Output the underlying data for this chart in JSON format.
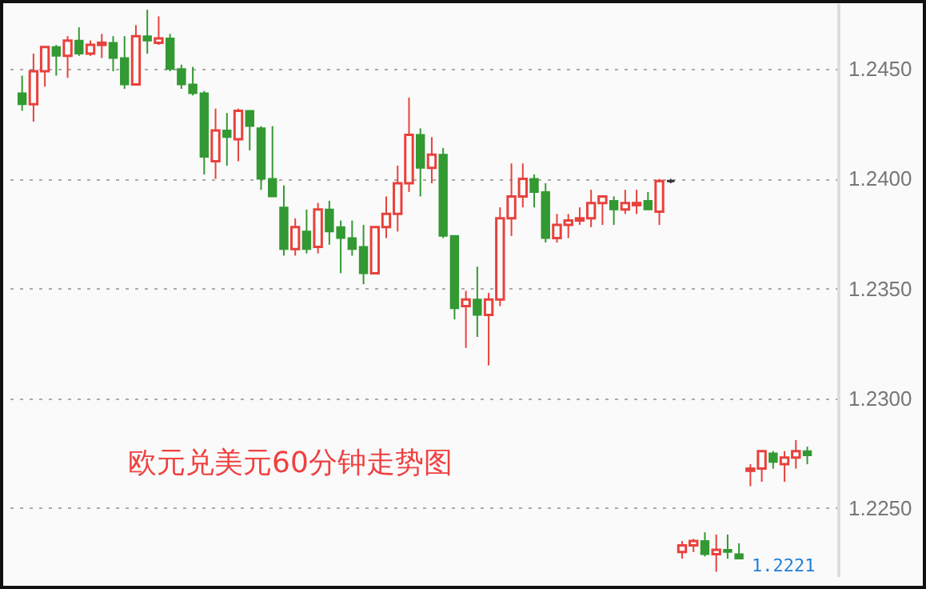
{
  "chart_data": {
    "type": "candlestick",
    "categories": [
      null,
      null,
      null,
      null,
      null,
      null,
      null,
      null,
      null,
      null,
      null,
      null,
      null,
      null,
      null,
      null,
      null,
      null,
      null,
      null,
      null,
      null,
      null,
      null,
      null,
      null,
      null,
      null,
      null,
      null,
      null,
      null,
      null,
      null,
      null,
      null,
      null,
      null,
      null,
      null,
      null,
      null,
      null,
      null,
      null,
      null,
      null,
      null,
      null,
      null,
      null,
      null,
      null,
      null,
      null,
      null,
      null,
      null,
      null,
      null,
      null,
      null,
      null,
      null,
      null,
      null,
      null,
      null,
      null,
      null
    ],
    "ohlc": [
      [
        1.2439,
        1.2447,
        1.2431,
        1.2434
      ],
      [
        1.2434,
        1.2457,
        1.2426,
        1.2449
      ],
      [
        1.2449,
        1.246,
        1.2442,
        1.246
      ],
      [
        1.246,
        1.2461,
        1.2447,
        1.2456
      ],
      [
        1.2456,
        1.2465,
        1.2446,
        1.2463
      ],
      [
        1.2463,
        1.2469,
        1.2456,
        1.2457
      ],
      [
        1.2457,
        1.2463,
        1.2456,
        1.2461
      ],
      [
        1.2461,
        1.2466,
        1.2455,
        1.2462
      ],
      [
        1.2462,
        1.2465,
        1.2449,
        1.2455
      ],
      [
        1.2455,
        1.2465,
        1.2441,
        1.2443
      ],
      [
        1.2443,
        1.247,
        1.2443,
        1.2465
      ],
      [
        1.2465,
        1.2477,
        1.2457,
        1.2463
      ],
      [
        1.2462,
        1.2474,
        1.2461,
        1.2464
      ],
      [
        1.2464,
        1.2466,
        1.2449,
        1.245
      ],
      [
        1.245,
        1.2452,
        1.2441,
        1.2443
      ],
      [
        1.2443,
        1.2451,
        1.2438,
        1.2439
      ],
      [
        1.2439,
        1.244,
        1.2402,
        1.241
      ],
      [
        1.2408,
        1.2432,
        1.24,
        1.2422
      ],
      [
        1.2422,
        1.243,
        1.2406,
        1.2419
      ],
      [
        1.2418,
        1.2432,
        1.2408,
        1.2431
      ],
      [
        1.2431,
        1.2431,
        1.2413,
        1.2424
      ],
      [
        1.2423,
        1.2424,
        1.2395,
        1.24
      ],
      [
        1.24,
        1.2424,
        1.2392,
        1.2392
      ],
      [
        1.2387,
        1.2397,
        1.2365,
        1.2368
      ],
      [
        1.2368,
        1.2382,
        1.2365,
        1.2378
      ],
      [
        1.2376,
        1.2386,
        1.2366,
        1.2368
      ],
      [
        1.2369,
        1.2389,
        1.2366,
        1.2386
      ],
      [
        1.2386,
        1.239,
        1.237,
        1.2376
      ],
      [
        1.2378,
        1.2381,
        1.2357,
        1.2373
      ],
      [
        1.2373,
        1.2381,
        1.2365,
        1.2368
      ],
      [
        1.2369,
        1.2379,
        1.2352,
        1.2357
      ],
      [
        1.2357,
        1.2378,
        1.2357,
        1.2378
      ],
      [
        1.2378,
        1.2392,
        1.2373,
        1.2384
      ],
      [
        1.2384,
        1.2406,
        1.2376,
        1.2398
      ],
      [
        1.2398,
        1.2437,
        1.2394,
        1.242
      ],
      [
        1.242,
        1.2423,
        1.2392,
        1.2405
      ],
      [
        1.2405,
        1.2419,
        1.2398,
        1.2411
      ],
      [
        1.2411,
        1.2414,
        1.2373,
        1.2374
      ],
      [
        1.2374,
        1.2374,
        1.2336,
        1.2341
      ],
      [
        1.2342,
        1.2349,
        1.2323,
        1.2345
      ],
      [
        1.2345,
        1.236,
        1.2328,
        1.2338
      ],
      [
        1.2338,
        1.2348,
        1.2315,
        1.2345
      ],
      [
        1.2345,
        1.2387,
        1.2342,
        1.2382
      ],
      [
        1.2382,
        1.2407,
        1.2374,
        1.2392
      ],
      [
        1.2392,
        1.2407,
        1.2387,
        1.24
      ],
      [
        1.24,
        1.2402,
        1.2387,
        1.2394
      ],
      [
        1.2394,
        1.2398,
        1.2371,
        1.2373
      ],
      [
        1.2373,
        1.2384,
        1.2371,
        1.2379
      ],
      [
        1.2379,
        1.2384,
        1.2373,
        1.2381
      ],
      [
        1.2381,
        1.2387,
        1.2379,
        1.2382
      ],
      [
        1.2382,
        1.2395,
        1.2378,
        1.2389
      ],
      [
        1.2389,
        1.2392,
        1.2379,
        1.2392
      ],
      [
        1.239,
        1.2392,
        1.2379,
        1.2386
      ],
      [
        1.2386,
        1.2395,
        1.2384,
        1.2389
      ],
      [
        1.2388,
        1.2395,
        1.2384,
        1.2389
      ],
      [
        1.239,
        1.2394,
        1.2386,
        1.2386
      ],
      [
        1.2385,
        1.24,
        1.2379,
        1.2399
      ],
      [
        1.2399,
        1.24,
        1.2398,
        1.2399
      ],
      [
        1.223,
        1.2235,
        1.2227,
        1.2233
      ],
      [
        1.2233,
        1.2236,
        1.223,
        1.2235
      ],
      [
        1.2235,
        1.2239,
        1.2228,
        1.2229
      ],
      [
        1.2229,
        1.2238,
        1.2221,
        1.2231
      ],
      [
        1.2231,
        1.2238,
        1.2227,
        1.223
      ],
      [
        1.2229,
        1.2234,
        1.2227,
        1.2227
      ],
      [
        1.2267,
        1.227,
        1.226,
        1.2268
      ],
      [
        1.2268,
        1.2276,
        1.2262,
        1.2276
      ],
      [
        1.2275,
        1.2276,
        1.2268,
        1.2271
      ],
      [
        1.227,
        1.2276,
        1.2262,
        1.2273
      ],
      [
        1.2273,
        1.2281,
        1.2268,
        1.2276
      ],
      [
        1.2276,
        1.2278,
        1.227,
        1.2274
      ]
    ],
    "colors": [
      "#339933",
      "#e8413c",
      "#e8413c",
      "#339933",
      "#e8413c",
      "#339933",
      "#e8413c",
      "#e8413c",
      "#339933",
      "#339933",
      "#e8413c",
      "#339933",
      "#e8413c",
      "#339933",
      "#339933",
      "#339933",
      "#339933",
      "#e8413c",
      "#339933",
      "#e8413c",
      "#339933",
      "#339933",
      "#339933",
      "#339933",
      "#e8413c",
      "#339933",
      "#e8413c",
      "#339933",
      "#339933",
      "#339933",
      "#339933",
      "#e8413c",
      "#e8413c",
      "#e8413c",
      "#e8413c",
      "#339933",
      "#e8413c",
      "#339933",
      "#339933",
      "#e8413c",
      "#339933",
      "#e8413c",
      "#e8413c",
      "#e8413c",
      "#e8413c",
      "#339933",
      "#339933",
      "#e8413c",
      "#e8413c",
      "#e8413c",
      "#e8413c",
      "#e8413c",
      "#339933",
      "#e8413c",
      "#e8413c",
      "#339933",
      "#e8413c",
      "#333333",
      "#e8413c",
      "#e8413c",
      "#339933",
      "#e8413c",
      "#339933",
      "#339933",
      "#e8413c",
      "#e8413c",
      "#339933",
      "#e8413c",
      "#e8413c",
      "#339933"
    ],
    "ylim": [
      1.2219,
      1.248
    ],
    "yticks": [
      {
        "value": 1.225,
        "label": "1.2250"
      },
      {
        "value": 1.23,
        "label": "1.2300"
      },
      {
        "value": 1.235,
        "label": "1.2350"
      },
      {
        "value": 1.24,
        "label": "1.2400"
      },
      {
        "value": 1.245,
        "label": "1.2450"
      }
    ],
    "grid": "y",
    "tick_labels": "y",
    "annotations": [
      "欧元兑美元60分钟走势图",
      "1.2221"
    ]
  }
}
